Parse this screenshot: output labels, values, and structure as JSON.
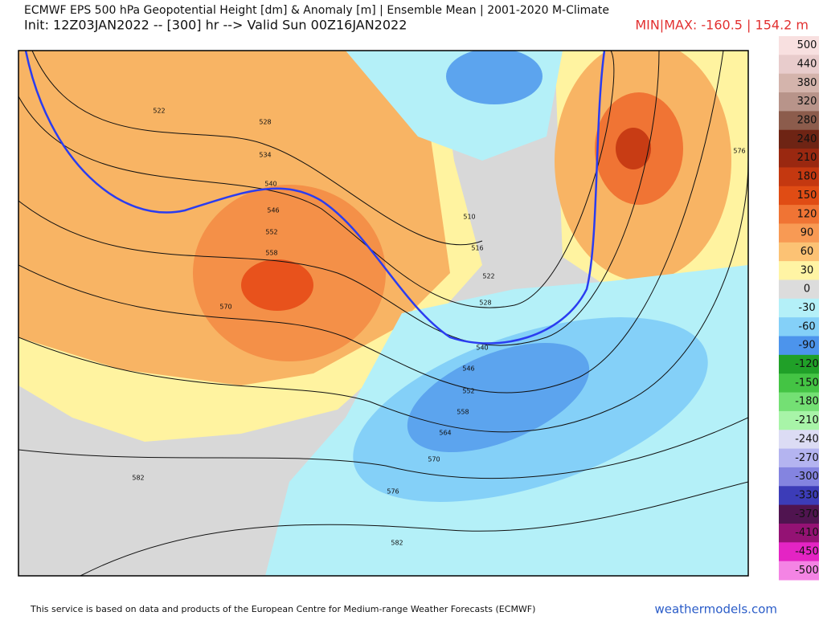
{
  "header": {
    "title": "ECMWF EPS 500 hPa Geopotential Height [dm] & Anomaly [m] | Ensemble Mean | 2001-2020 M-Climate",
    "subtitle": "Init: 12Z03JAN2022 -- [300] hr --> Valid Sun 00Z16JAN2022",
    "minmax": "MIN|MAX: -160.5 | 154.2 m"
  },
  "colorbar": [
    {
      "label": 500,
      "color": "#f8e0e0"
    },
    {
      "label": 440,
      "color": "#e8cccc"
    },
    {
      "label": 380,
      "color": "#d4b4ac"
    },
    {
      "label": 320,
      "color": "#b8948a"
    },
    {
      "label": 280,
      "color": "#8c5c4c"
    },
    {
      "label": 240,
      "color": "#6e2414"
    },
    {
      "label": 210,
      "color": "#9a2810"
    },
    {
      "label": 180,
      "color": "#c43810"
    },
    {
      "label": 150,
      "color": "#e04c14"
    },
    {
      "label": 120,
      "color": "#f07434"
    },
    {
      "label": 90,
      "color": "#f89a54"
    },
    {
      "label": 60,
      "color": "#fcc274"
    },
    {
      "label": 30,
      "color": "#fff4a4"
    },
    {
      "label": 0,
      "color": "#dcdcdc"
    },
    {
      "label": -30,
      "color": "#b4f0f8"
    },
    {
      "label": -60,
      "color": "#84d0f8"
    },
    {
      "label": -90,
      "color": "#4c94ec"
    },
    {
      "label": -120,
      "color": "#20a028"
    },
    {
      "label": -150,
      "color": "#44c444"
    },
    {
      "label": -180,
      "color": "#74e074"
    },
    {
      "label": -210,
      "color": "#a8f4a8"
    },
    {
      "label": -240,
      "color": "#dcdcf4"
    },
    {
      "label": -270,
      "color": "#b4b4f0"
    },
    {
      "label": -300,
      "color": "#8484e0"
    },
    {
      "label": -330,
      "color": "#3c3cb8"
    },
    {
      "label": -370,
      "color": "#501450"
    },
    {
      "label": -410,
      "color": "#941274"
    },
    {
      "label": -450,
      "color": "#e424c4"
    },
    {
      "label": -500,
      "color": "#f484e4"
    }
  ],
  "contour_labels": [
    522,
    528,
    534,
    540,
    546,
    552,
    558,
    570,
    582,
    576,
    510,
    516,
    522,
    528,
    540,
    546,
    552,
    558,
    564,
    570,
    576,
    582
  ],
  "footer": {
    "credit": "This service is based on data and products of the European Centre for Medium-range Weather Forecasts (ECMWF)",
    "site": "weathermodels.com"
  }
}
